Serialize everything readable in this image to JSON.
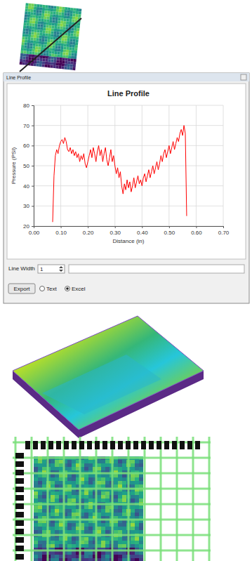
{
  "window": {
    "title": "Line Profile",
    "line_width_label": "Line Width",
    "line_width": 1,
    "export": "Export",
    "options": [
      {
        "label": "Text",
        "selected": false
      },
      {
        "label": "Excel",
        "selected": true
      }
    ]
  },
  "chart_data": {
    "type": "line",
    "title": "Line Profile",
    "x_label": "Distance (in)",
    "y_label": "Pressure (PSI)",
    "color": "#ff0000",
    "grid": true,
    "xlim": [
      0,
      0.7
    ],
    "xticks": [
      {
        "value": 0,
        "label": "0.00"
      },
      {
        "value": 0.1,
        "label": "0.10"
      },
      {
        "value": 0.2,
        "label": "0.20"
      },
      {
        "value": 0.3,
        "label": "0.30"
      },
      {
        "value": 0.4,
        "label": "0.40"
      },
      {
        "value": 0.5,
        "label": "0.50"
      },
      {
        "value": 0.6,
        "label": "0.60"
      },
      {
        "value": 0.7,
        "label": "0.70"
      }
    ],
    "ylim": [
      20,
      80
    ],
    "yticks": [
      20,
      30,
      40,
      50,
      60,
      70,
      80
    ],
    "x": [
      0.07,
      0.075,
      0.08,
      0.085,
      0.09,
      0.095,
      0.1,
      0.105,
      0.11,
      0.115,
      0.12,
      0.125,
      0.13,
      0.135,
      0.14,
      0.145,
      0.15,
      0.155,
      0.16,
      0.165,
      0.17,
      0.175,
      0.18,
      0.185,
      0.19,
      0.195,
      0.2,
      0.205,
      0.21,
      0.215,
      0.22,
      0.225,
      0.23,
      0.235,
      0.24,
      0.245,
      0.25,
      0.255,
      0.26,
      0.265,
      0.27,
      0.275,
      0.28,
      0.285,
      0.29,
      0.295,
      0.3,
      0.305,
      0.31,
      0.315,
      0.32,
      0.325,
      0.33,
      0.335,
      0.34,
      0.345,
      0.35,
      0.355,
      0.36,
      0.365,
      0.37,
      0.375,
      0.38,
      0.385,
      0.39,
      0.395,
      0.4,
      0.405,
      0.41,
      0.415,
      0.42,
      0.425,
      0.43,
      0.435,
      0.44,
      0.445,
      0.45,
      0.455,
      0.46,
      0.465,
      0.47,
      0.475,
      0.48,
      0.485,
      0.49,
      0.495,
      0.5,
      0.505,
      0.51,
      0.515,
      0.52,
      0.525,
      0.53,
      0.535,
      0.54,
      0.545,
      0.55,
      0.555,
      0.56,
      0.565
    ],
    "values": [
      22,
      45,
      55,
      58,
      56,
      60,
      62,
      63,
      61,
      64,
      62,
      58,
      57,
      59,
      56,
      58,
      55,
      57,
      54,
      56,
      52,
      55,
      53,
      56,
      51,
      49,
      52,
      55,
      58,
      54,
      59,
      56,
      52,
      57,
      60,
      55,
      58,
      52,
      56,
      59,
      53,
      50,
      54,
      58,
      52,
      55,
      50,
      46,
      49,
      44,
      47,
      40,
      36,
      41,
      38,
      43,
      39,
      42,
      37,
      40,
      44,
      39,
      42,
      45,
      41,
      43,
      40,
      44,
      46,
      42,
      45,
      48,
      44,
      47,
      50,
      46,
      49,
      52,
      48,
      51,
      55,
      52,
      56,
      58,
      54,
      57,
      60,
      56,
      59,
      62,
      58,
      61,
      64,
      62,
      66,
      68,
      65,
      70,
      66,
      25
    ]
  }
}
